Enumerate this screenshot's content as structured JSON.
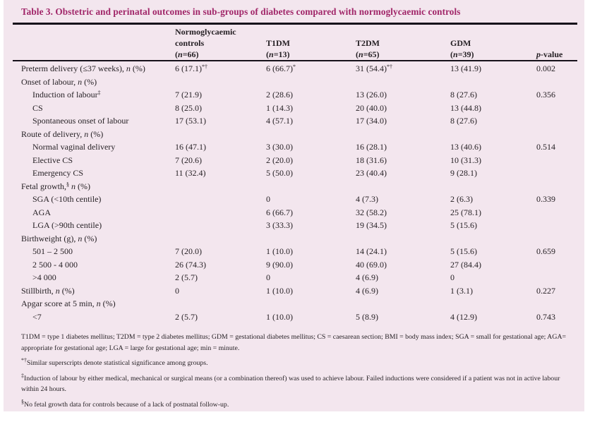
{
  "colors": {
    "panel_bg": "#f3e6ee",
    "accent": "#a02568",
    "text": "#241f23",
    "rule": "#16111a"
  },
  "table": {
    "title": "Table 3. Obstetric and perinatal outcomes in sub-groups of diabetes compared with normoglycaemic controls",
    "header": {
      "controls": [
        "Normoglycaemic",
        "controls",
        "(<i>n</i>=66)"
      ],
      "t1dm": [
        "T1DM",
        "(<i>n</i>=13)"
      ],
      "t2dm": [
        "T2DM",
        "(<i>n</i>=65)"
      ],
      "gdm": [
        "GDM",
        "(<i>n</i>=39)"
      ],
      "p": "<i>p</i>-value"
    },
    "rows": [
      {
        "indent": false,
        "label": "Preterm delivery (≤37 weeks), <i>n</i> (%)",
        "c1": "6 (17.1)<sup>*†</sup>",
        "c2": "6 (66.7)<sup>*</sup>",
        "c3": "31 (54.4)<sup>*†</sup>",
        "c4": "13 (41.9)",
        "p": "0.002"
      },
      {
        "indent": false,
        "label": "Onset of labour, <i>n</i> (%)",
        "c1": "",
        "c2": "",
        "c3": "",
        "c4": "",
        "p": ""
      },
      {
        "indent": true,
        "label": "Induction of labour<sup>‡</sup>",
        "c1": "7 (21.9)",
        "c2": "2 (28.6)",
        "c3": "13 (26.0)",
        "c4": "8 (27.6)",
        "p": "0.356"
      },
      {
        "indent": true,
        "label": "CS",
        "c1": "8 (25.0)",
        "c2": "1 (14.3)",
        "c3": "20 (40.0)",
        "c4": "13 (44.8)",
        "p": ""
      },
      {
        "indent": true,
        "label": "Spontaneous onset of labour",
        "c1": "17 (53.1)",
        "c2": "4 (57.1)",
        "c3": "17 (34.0)",
        "c4": "8 (27.6)",
        "p": ""
      },
      {
        "indent": false,
        "label": "Route of delivery, <i>n</i> (%)",
        "c1": "",
        "c2": "",
        "c3": "",
        "c4": "",
        "p": ""
      },
      {
        "indent": true,
        "label": "Normal vaginal delivery",
        "c1": "16 (47.1)",
        "c2": "3 (30.0)",
        "c3": "16 (28.1)",
        "c4": "13 (40.6)",
        "p": "0.514"
      },
      {
        "indent": true,
        "label": "Elective CS",
        "c1": "7 (20.6)",
        "c2": "2 (20.0)",
        "c3": "18 (31.6)",
        "c4": "10 (31.3)",
        "p": ""
      },
      {
        "indent": true,
        "label": "Emergency CS",
        "c1": "11 (32.4)",
        "c2": "5 (50.0)",
        "c3": "23 (40.4)",
        "c4": "9 (28.1)",
        "p": ""
      },
      {
        "indent": false,
        "label": "Fetal growth,<sup>§</sup> <i>n</i> (%)",
        "c1": "",
        "c2": "",
        "c3": "",
        "c4": "",
        "p": ""
      },
      {
        "indent": true,
        "label": "SGA (&lt;10th centile)",
        "c1": "",
        "c2": "0",
        "c3": "4 (7.3)",
        "c4": "2 (6.3)",
        "p": "0.339"
      },
      {
        "indent": true,
        "label": "AGA",
        "c1": "",
        "c2": "6 (66.7)",
        "c3": "32 (58.2)",
        "c4": "25 (78.1)",
        "p": ""
      },
      {
        "indent": true,
        "label": "LGA (&gt;90th centile)",
        "c1": "",
        "c2": "3 (33.3)",
        "c3": "19 (34.5)",
        "c4": "5 (15.6)",
        "p": ""
      },
      {
        "indent": false,
        "label": "Birthweight (g), <i>n</i> (%)",
        "c1": "",
        "c2": "",
        "c3": "",
        "c4": "",
        "p": ""
      },
      {
        "indent": true,
        "label": "501 – 2 500",
        "c1": "7 (20.0)",
        "c2": "1 (10.0)",
        "c3": "14 (24.1)",
        "c4": "5 (15.6)",
        "p": "0.659"
      },
      {
        "indent": true,
        "label": "2 500 - 4 000",
        "c1": "26 (74.3)",
        "c2": "9 (90.0)",
        "c3": "40 (69.0)",
        "c4": "27 (84.4)",
        "p": ""
      },
      {
        "indent": true,
        "label": "&gt;4 000",
        "c1": "2 (5.7)",
        "c2": "0",
        "c3": "4 (6.9)",
        "c4": "0",
        "p": ""
      },
      {
        "indent": false,
        "label": "Stillbirth, <i>n</i> (%)",
        "c1": "0",
        "c2": "1 (10.0)",
        "c3": "4 (6.9)",
        "c4": "1 (3.1)",
        "p": "0.227"
      },
      {
        "indent": false,
        "label": "Apgar score at 5 min, <i>n</i> (%)",
        "c1": "",
        "c2": "",
        "c3": "",
        "c4": "",
        "p": ""
      },
      {
        "indent": true,
        "label": "&lt;7",
        "c1": "2 (5.7)",
        "c2": "1 (10.0)",
        "c3": "5 (8.9)",
        "c4": "4 (12.9)",
        "p": "0.743"
      }
    ],
    "footnotes": [
      "T1DM = type 1 diabetes mellitus; T2DM = type 2 diabetes mellitus; GDM = gestational diabetes mellitus; CS = caesarean section; BMI = body mass index; SGA = small for gestational age; AGA= appropriate for gestational age; LGA = large for gestational age; min = minute.",
      "<sup>*†</sup>Similar superscripts denote statistical significance among groups.",
      "<sup>‡</sup>Induction of labour by either medical, mechanical or surgical means (or a combination thereof) was used to achieve labour. Failed inductions were considered if a patient was not in active labour within 24 hours.",
      "<sup>§</sup>No fetal growth data for controls because of a lack of postnatal follow-up."
    ]
  }
}
